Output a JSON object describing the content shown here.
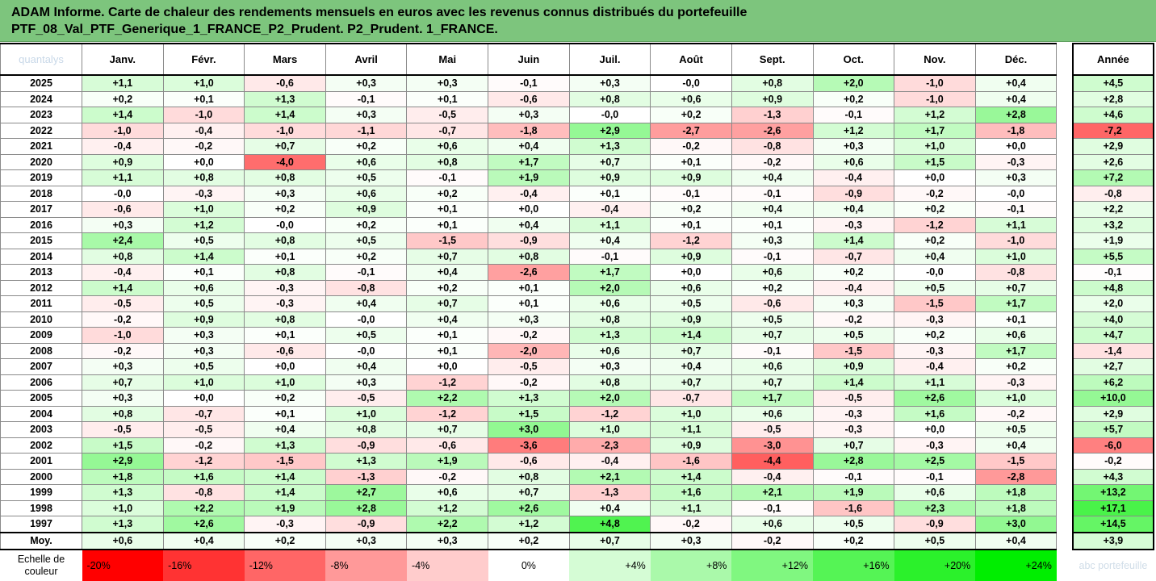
{
  "report": {
    "title_line1": "ADAM Informe. Carte de chaleur des rendements mensuels en euros avec les revenus connus distribués du portefeuille",
    "title_line2": "PTF_08_Val_PTF_Generique_1_FRANCE_P2_Prudent. P2_Prudent. 1_FRANCE."
  },
  "corner_watermark": "quantalys",
  "bottom_watermark": "abc portefeuille",
  "chart_data": {
    "type": "heatmap",
    "columns": [
      "Janv.",
      "Févr.",
      "Mars",
      "Avril",
      "Mai",
      "Juin",
      "Juil.",
      "Août",
      "Sept.",
      "Oct.",
      "Nov.",
      "Déc."
    ],
    "year_column": "Année",
    "rows": [
      {
        "year": "2025",
        "values": [
          "+1,1",
          "+1,0",
          "-0,6",
          "+0,3",
          "+0,3",
          "-0,1",
          "+0,3",
          "-0,0",
          "+0,8",
          "+2,0",
          "-1,0",
          "+0,4"
        ],
        "annual": "+4,5"
      },
      {
        "year": "2024",
        "values": [
          "+0,2",
          "+0,1",
          "+1,3",
          "-0,1",
          "+0,1",
          "-0,6",
          "+0,8",
          "+0,6",
          "+0,9",
          "+0,2",
          "-1,0",
          "+0,4"
        ],
        "annual": "+2,8"
      },
      {
        "year": "2023",
        "values": [
          "+1,4",
          "-1,0",
          "+1,4",
          "+0,3",
          "-0,5",
          "+0,3",
          "-0,0",
          "+0,2",
          "-1,3",
          "-0,1",
          "+1,2",
          "+2,8"
        ],
        "annual": "+4,6"
      },
      {
        "year": "2022",
        "values": [
          "-1,0",
          "-0,4",
          "-1,0",
          "-1,1",
          "-0,7",
          "-1,8",
          "+2,9",
          "-2,7",
          "-2,6",
          "+1,2",
          "+1,7",
          "-1,8"
        ],
        "annual": "-7,2"
      },
      {
        "year": "2021",
        "values": [
          "-0,4",
          "-0,2",
          "+0,7",
          "+0,2",
          "+0,6",
          "+0,4",
          "+1,3",
          "-0,2",
          "-0,8",
          "+0,3",
          "+1,0",
          "+0,0"
        ],
        "annual": "+2,9"
      },
      {
        "year": "2020",
        "values": [
          "+0,9",
          "+0,0",
          "-4,0",
          "+0,6",
          "+0,8",
          "+1,7",
          "+0,7",
          "+0,1",
          "-0,2",
          "+0,6",
          "+1,5",
          "-0,3"
        ],
        "annual": "+2,6"
      },
      {
        "year": "2019",
        "values": [
          "+1,1",
          "+0,8",
          "+0,8",
          "+0,5",
          "-0,1",
          "+1,9",
          "+0,9",
          "+0,9",
          "+0,4",
          "-0,4",
          "+0,0",
          "+0,3"
        ],
        "annual": "+7,2"
      },
      {
        "year": "2018",
        "values": [
          "-0,0",
          "-0,3",
          "+0,3",
          "+0,6",
          "+0,2",
          "-0,4",
          "+0,1",
          "-0,1",
          "-0,1",
          "-0,9",
          "-0,2",
          "-0,0"
        ],
        "annual": "-0,8"
      },
      {
        "year": "2017",
        "values": [
          "-0,6",
          "+1,0",
          "+0,2",
          "+0,9",
          "+0,1",
          "+0,0",
          "-0,4",
          "+0,2",
          "+0,4",
          "+0,4",
          "+0,2",
          "-0,1"
        ],
        "annual": "+2,2"
      },
      {
        "year": "2016",
        "values": [
          "+0,3",
          "+1,2",
          "-0,0",
          "+0,2",
          "+0,1",
          "+0,4",
          "+1,1",
          "+0,1",
          "+0,1",
          "-0,3",
          "-1,2",
          "+1,1"
        ],
        "annual": "+3,2"
      },
      {
        "year": "2015",
        "values": [
          "+2,4",
          "+0,5",
          "+0,8",
          "+0,5",
          "-1,5",
          "-0,9",
          "+0,4",
          "-1,2",
          "+0,3",
          "+1,4",
          "+0,2",
          "-1,0"
        ],
        "annual": "+1,9"
      },
      {
        "year": "2014",
        "values": [
          "+0,8",
          "+1,4",
          "+0,1",
          "+0,2",
          "+0,7",
          "+0,8",
          "-0,1",
          "+0,9",
          "-0,1",
          "-0,7",
          "+0,4",
          "+1,0"
        ],
        "annual": "+5,5"
      },
      {
        "year": "2013",
        "values": [
          "-0,4",
          "+0,1",
          "+0,8",
          "-0,1",
          "+0,4",
          "-2,6",
          "+1,7",
          "+0,0",
          "+0,6",
          "+0,2",
          "-0,0",
          "-0,8"
        ],
        "annual": "-0,1"
      },
      {
        "year": "2012",
        "values": [
          "+1,4",
          "+0,6",
          "-0,3",
          "-0,8",
          "+0,2",
          "+0,1",
          "+2,0",
          "+0,6",
          "+0,2",
          "-0,4",
          "+0,5",
          "+0,7"
        ],
        "annual": "+4,8"
      },
      {
        "year": "2011",
        "values": [
          "-0,5",
          "+0,5",
          "-0,3",
          "+0,4",
          "+0,7",
          "+0,1",
          "+0,6",
          "+0,5",
          "-0,6",
          "+0,3",
          "-1,5",
          "+1,7"
        ],
        "annual": "+2,0"
      },
      {
        "year": "2010",
        "values": [
          "-0,2",
          "+0,9",
          "+0,8",
          "-0,0",
          "+0,4",
          "+0,3",
          "+0,8",
          "+0,9",
          "+0,5",
          "-0,2",
          "-0,3",
          "+0,1"
        ],
        "annual": "+4,0"
      },
      {
        "year": "2009",
        "values": [
          "-1,0",
          "+0,3",
          "+0,1",
          "+0,5",
          "+0,1",
          "-0,2",
          "+1,3",
          "+1,4",
          "+0,7",
          "+0,5",
          "+0,2",
          "+0,6"
        ],
        "annual": "+4,7"
      },
      {
        "year": "2008",
        "values": [
          "-0,2",
          "+0,3",
          "-0,6",
          "-0,0",
          "+0,1",
          "-2,0",
          "+0,6",
          "+0,7",
          "-0,1",
          "-1,5",
          "-0,3",
          "+1,7"
        ],
        "annual": "-1,4"
      },
      {
        "year": "2007",
        "values": [
          "+0,3",
          "+0,5",
          "+0,0",
          "+0,4",
          "+0,0",
          "-0,5",
          "+0,3",
          "+0,4",
          "+0,6",
          "+0,9",
          "-0,4",
          "+0,2"
        ],
        "annual": "+2,7"
      },
      {
        "year": "2006",
        "values": [
          "+0,7",
          "+1,0",
          "+1,0",
          "+0,3",
          "-1,2",
          "-0,2",
          "+0,8",
          "+0,7",
          "+0,7",
          "+1,4",
          "+1,1",
          "-0,3"
        ],
        "annual": "+6,2"
      },
      {
        "year": "2005",
        "values": [
          "+0,3",
          "+0,0",
          "+0,2",
          "-0,5",
          "+2,2",
          "+1,3",
          "+2,0",
          "-0,7",
          "+1,7",
          "-0,5",
          "+2,6",
          "+1,0"
        ],
        "annual": "+10,0"
      },
      {
        "year": "2004",
        "values": [
          "+0,8",
          "-0,7",
          "+0,1",
          "+1,0",
          "-1,2",
          "+1,5",
          "-1,2",
          "+1,0",
          "+0,6",
          "-0,3",
          "+1,6",
          "-0,2"
        ],
        "annual": "+2,9"
      },
      {
        "year": "2003",
        "values": [
          "-0,5",
          "-0,5",
          "+0,4",
          "+0,8",
          "+0,7",
          "+3,0",
          "+1,0",
          "+1,1",
          "-0,5",
          "-0,3",
          "+0,0",
          "+0,5"
        ],
        "annual": "+5,7"
      },
      {
        "year": "2002",
        "values": [
          "+1,5",
          "-0,2",
          "+1,3",
          "-0,9",
          "-0,6",
          "-3,6",
          "-2,3",
          "+0,9",
          "-3,0",
          "+0,7",
          "-0,3",
          "+0,4"
        ],
        "annual": "-6,0"
      },
      {
        "year": "2001",
        "values": [
          "+2,9",
          "-1,2",
          "-1,5",
          "+1,3",
          "+1,9",
          "-0,6",
          "-0,4",
          "-1,6",
          "-4,4",
          "+2,8",
          "+2,5",
          "-1,5"
        ],
        "annual": "-0,2"
      },
      {
        "year": "2000",
        "values": [
          "+1,8",
          "+1,6",
          "+1,4",
          "-1,3",
          "-0,2",
          "+0,8",
          "+2,1",
          "+1,4",
          "-0,4",
          "-0,1",
          "-0,1",
          "-2,8"
        ],
        "annual": "+4,3"
      },
      {
        "year": "1999",
        "values": [
          "+1,3",
          "-0,8",
          "+1,4",
          "+2,7",
          "+0,6",
          "+0,7",
          "-1,3",
          "+1,6",
          "+2,1",
          "+1,9",
          "+0,6",
          "+1,8"
        ],
        "annual": "+13,2"
      },
      {
        "year": "1998",
        "values": [
          "+1,0",
          "+2,2",
          "+1,9",
          "+2,8",
          "+1,2",
          "+2,6",
          "+0,4",
          "+1,1",
          "-0,1",
          "-1,6",
          "+2,3",
          "+1,8"
        ],
        "annual": "+17,1"
      },
      {
        "year": "1997",
        "values": [
          "+1,3",
          "+2,6",
          "-0,3",
          "-0,9",
          "+2,2",
          "+1,2",
          "+4,8",
          "-0,2",
          "+0,6",
          "+0,5",
          "-0,9",
          "+3,0"
        ],
        "annual": "+14,5"
      }
    ],
    "average": {
      "label": "Moy.",
      "values": [
        "+0,6",
        "+0,4",
        "+0,2",
        "+0,3",
        "+0,3",
        "+0,2",
        "+0,7",
        "+0,3",
        "-0,2",
        "+0,2",
        "+0,5",
        "+0,4"
      ],
      "annual": "+3,9"
    },
    "scale": {
      "label_line1": "Echelle de",
      "label_line2": "couleur",
      "steps": [
        {
          "label": "-20%",
          "value": -20
        },
        {
          "label": "-16%",
          "value": -16
        },
        {
          "label": "-12%",
          "value": -12
        },
        {
          "label": "-8%",
          "value": -8
        },
        {
          "label": "-4%",
          "value": -4
        },
        {
          "label": "0%",
          "value": 0
        },
        {
          "label": "+4%",
          "value": 4
        },
        {
          "label": "+8%",
          "value": 8
        },
        {
          "label": "+12%",
          "value": 12
        },
        {
          "label": "+16%",
          "value": 16
        },
        {
          "label": "+20%",
          "value": 20
        },
        {
          "label": "+24%",
          "value": 24
        }
      ]
    },
    "colors": {
      "negative_max": "#ff0000",
      "neutral": "#ffffff",
      "positive_max": "#00ee00"
    }
  }
}
